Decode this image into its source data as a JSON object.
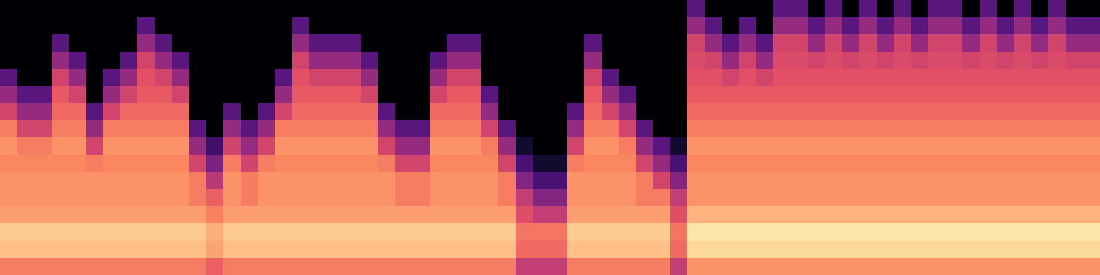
{
  "chart_data": {
    "type": "heatmap",
    "tick_labels": false,
    "zlim": [
      0,
      80
    ],
    "cells": [
      [
        58,
        58,
        58,
        58,
        58,
        58,
        58,
        58,
        58,
        58,
        58,
        58,
        53,
        58,
        58,
        58,
        58,
        58,
        58,
        58,
        58,
        58,
        58,
        58,
        58,
        58,
        58,
        58,
        58,
        58,
        43,
        43,
        43,
        58,
        58,
        58,
        58,
        58,
        58,
        43,
        62,
        62,
        62,
        62,
        62,
        62,
        62,
        62,
        62,
        62,
        62,
        62,
        62,
        62,
        62,
        62,
        62,
        62,
        62,
        62,
        62,
        62,
        62,
        62
      ],
      [
        70,
        70,
        70,
        70,
        70,
        70,
        70,
        70,
        70,
        70,
        70,
        70,
        65,
        70,
        70,
        70,
        70,
        70,
        70,
        70,
        70,
        70,
        70,
        70,
        70,
        70,
        70,
        70,
        70,
        70,
        55,
        55,
        55,
        70,
        70,
        70,
        70,
        70,
        70,
        55,
        74,
        74,
        74,
        74,
        74,
        74,
        74,
        74,
        74,
        74,
        74,
        74,
        74,
        74,
        74,
        74,
        74,
        74,
        74,
        74,
        74,
        74,
        74,
        74
      ],
      [
        72,
        72,
        72,
        72,
        72,
        72,
        72,
        72,
        72,
        72,
        72,
        72,
        67,
        72,
        72,
        72,
        72,
        72,
        72,
        72,
        72,
        72,
        72,
        72,
        72,
        72,
        72,
        72,
        72,
        72,
        57,
        57,
        57,
        72,
        72,
        72,
        72,
        72,
        72,
        57,
        76,
        76,
        76,
        76,
        76,
        76,
        76,
        76,
        76,
        76,
        76,
        76,
        76,
        76,
        76,
        76,
        76,
        76,
        76,
        76,
        76,
        76,
        76,
        76
      ],
      [
        64,
        64,
        64,
        64,
        64,
        64,
        64,
        64,
        64,
        64,
        64,
        64,
        59,
        64,
        64,
        64,
        64,
        64,
        64,
        64,
        64,
        64,
        64,
        64,
        64,
        64,
        64,
        64,
        64,
        64,
        49,
        43,
        43,
        64,
        64,
        64,
        64,
        64,
        64,
        49,
        68,
        68,
        68,
        68,
        68,
        68,
        68,
        68,
        68,
        68,
        68,
        68,
        68,
        68,
        68,
        68,
        68,
        68,
        68,
        68,
        68,
        68,
        68,
        68
      ],
      [
        62,
        62,
        62,
        62,
        62,
        62,
        62,
        62,
        62,
        62,
        62,
        58,
        53,
        62,
        58,
        62,
        62,
        62,
        62,
        62,
        62,
        62,
        62,
        58,
        58,
        62,
        62,
        62,
        62,
        58,
        43,
        31,
        31,
        62,
        62,
        62,
        62,
        58,
        58,
        43,
        62,
        62,
        62,
        62,
        62,
        62,
        62,
        62,
        62,
        62,
        62,
        62,
        62,
        62,
        62,
        62,
        62,
        62,
        62,
        62,
        62,
        62,
        62,
        62
      ],
      [
        62,
        62,
        62,
        62,
        62,
        62,
        62,
        62,
        62,
        62,
        62,
        58,
        41,
        62,
        58,
        62,
        62,
        62,
        62,
        62,
        62,
        62,
        62,
        58,
        58,
        62,
        62,
        62,
        62,
        58,
        31,
        19,
        19,
        62,
        62,
        62,
        62,
        58,
        46,
        31,
        62,
        62,
        62,
        62,
        62,
        62,
        62,
        62,
        62,
        62,
        62,
        62,
        62,
        62,
        62,
        62,
        62,
        62,
        62,
        62,
        62,
        62,
        62,
        62
      ],
      [
        60,
        60,
        60,
        60,
        60,
        58,
        60,
        60,
        60,
        60,
        60,
        46,
        29,
        58,
        46,
        58,
        60,
        60,
        60,
        60,
        60,
        60,
        58,
        46,
        46,
        60,
        60,
        60,
        60,
        46,
        19,
        7,
        7,
        58,
        60,
        60,
        60,
        46,
        34,
        19,
        60,
        60,
        60,
        60,
        60,
        60,
        60,
        60,
        60,
        60,
        60,
        60,
        60,
        60,
        60,
        60,
        60,
        60,
        60,
        60,
        60,
        60,
        60,
        60
      ],
      [
        62,
        58,
        58,
        62,
        62,
        46,
        62,
        62,
        62,
        62,
        62,
        34,
        17,
        46,
        34,
        46,
        62,
        62,
        62,
        62,
        62,
        62,
        46,
        34,
        34,
        62,
        62,
        62,
        58,
        34,
        7,
        0,
        0,
        46,
        62,
        62,
        58,
        34,
        22,
        7,
        62,
        62,
        62,
        62,
        62,
        62,
        62,
        62,
        62,
        62,
        62,
        62,
        62,
        62,
        62,
        62,
        62,
        62,
        62,
        62,
        62,
        62,
        62,
        62
      ],
      [
        58,
        46,
        46,
        58,
        58,
        34,
        58,
        58,
        58,
        58,
        58,
        22,
        0,
        34,
        22,
        34,
        58,
        58,
        58,
        58,
        58,
        58,
        34,
        22,
        22,
        58,
        58,
        58,
        46,
        22,
        0,
        0,
        0,
        34,
        58,
        58,
        46,
        22,
        0,
        0,
        58,
        58,
        58,
        58,
        58,
        58,
        58,
        58,
        58,
        58,
        58,
        58,
        58,
        58,
        58,
        58,
        58,
        58,
        58,
        58,
        58,
        58,
        58,
        58
      ],
      [
        46,
        34,
        34,
        55,
        55,
        22,
        46,
        55,
        55,
        55,
        55,
        0,
        0,
        22,
        0,
        22,
        46,
        55,
        55,
        55,
        55,
        55,
        22,
        0,
        0,
        55,
        55,
        55,
        34,
        0,
        0,
        0,
        0,
        22,
        55,
        46,
        34,
        0,
        0,
        0,
        55,
        55,
        55,
        55,
        55,
        55,
        55,
        55,
        55,
        55,
        55,
        55,
        55,
        55,
        55,
        55,
        55,
        55,
        55,
        55,
        55,
        55,
        55,
        55
      ],
      [
        34,
        22,
        22,
        52,
        46,
        0,
        34,
        46,
        52,
        52,
        46,
        0,
        0,
        0,
        0,
        0,
        34,
        52,
        52,
        52,
        52,
        46,
        0,
        0,
        0,
        46,
        52,
        52,
        22,
        0,
        0,
        0,
        0,
        0,
        52,
        34,
        22,
        0,
        0,
        0,
        52,
        52,
        52,
        52,
        52,
        52,
        52,
        52,
        52,
        52,
        52,
        52,
        52,
        52,
        52,
        52,
        52,
        52,
        52,
        52,
        52,
        52,
        52,
        52
      ],
      [
        22,
        0,
        0,
        46,
        34,
        0,
        22,
        34,
        50,
        46,
        34,
        0,
        0,
        0,
        0,
        0,
        22,
        50,
        46,
        46,
        46,
        34,
        0,
        0,
        0,
        34,
        46,
        46,
        0,
        0,
        0,
        0,
        0,
        0,
        46,
        22,
        0,
        0,
        0,
        0,
        50,
        50,
        46,
        50,
        46,
        50,
        50,
        50,
        50,
        50,
        50,
        50,
        50,
        50,
        50,
        50,
        50,
        50,
        50,
        50,
        50,
        50,
        50,
        50
      ],
      [
        0,
        0,
        0,
        34,
        22,
        0,
        0,
        22,
        46,
        34,
        22,
        0,
        0,
        0,
        0,
        0,
        0,
        46,
        34,
        34,
        34,
        22,
        0,
        0,
        0,
        22,
        34,
        34,
        0,
        0,
        0,
        0,
        0,
        0,
        34,
        0,
        0,
        0,
        0,
        0,
        48,
        46,
        34,
        46,
        34,
        48,
        48,
        46,
        48,
        46,
        48,
        46,
        48,
        46,
        48,
        48,
        46,
        48,
        46,
        48,
        46,
        48,
        46,
        46
      ],
      [
        0,
        0,
        0,
        22,
        0,
        0,
        0,
        0,
        34,
        22,
        0,
        0,
        0,
        0,
        0,
        0,
        0,
        34,
        22,
        22,
        22,
        0,
        0,
        0,
        0,
        0,
        22,
        22,
        0,
        0,
        0,
        0,
        0,
        0,
        22,
        0,
        0,
        0,
        0,
        0,
        46,
        34,
        22,
        34,
        22,
        46,
        46,
        34,
        46,
        34,
        46,
        34,
        46,
        34,
        46,
        46,
        34,
        46,
        34,
        46,
        34,
        46,
        34,
        34
      ],
      [
        0,
        0,
        0,
        0,
        0,
        0,
        0,
        0,
        22,
        0,
        0,
        0,
        0,
        0,
        0,
        0,
        0,
        22,
        0,
        0,
        0,
        0,
        0,
        0,
        0,
        0,
        0,
        0,
        0,
        0,
        0,
        0,
        0,
        0,
        0,
        0,
        0,
        0,
        0,
        0,
        34,
        22,
        0,
        22,
        0,
        34,
        34,
        22,
        34,
        22,
        34,
        22,
        34,
        22,
        34,
        34,
        22,
        34,
        22,
        34,
        22,
        34,
        22,
        22
      ],
      [
        0,
        0,
        0,
        0,
        0,
        0,
        0,
        0,
        0,
        0,
        0,
        0,
        0,
        0,
        0,
        0,
        0,
        0,
        0,
        0,
        0,
        0,
        0,
        0,
        0,
        0,
        0,
        0,
        0,
        0,
        0,
        0,
        0,
        0,
        0,
        0,
        0,
        0,
        0,
        0,
        22,
        0,
        0,
        0,
        0,
        22,
        22,
        0,
        22,
        0,
        22,
        0,
        22,
        0,
        22,
        22,
        0,
        22,
        0,
        22,
        0,
        22,
        0,
        0
      ]
    ]
  }
}
